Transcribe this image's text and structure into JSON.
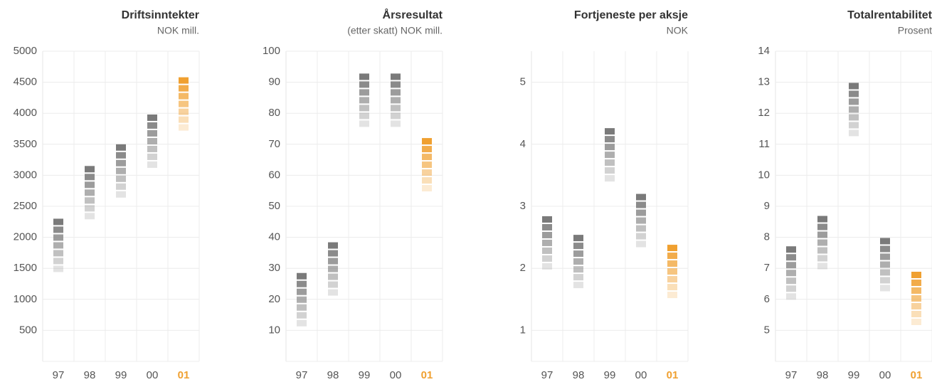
{
  "chart_data": [
    {
      "type": "bar",
      "title": "Driftsinntekter",
      "subtitle": "NOK mill.",
      "categories": [
        "97",
        "98",
        "99",
        "00",
        "01"
      ],
      "values": [
        2300,
        3150,
        3500,
        3980,
        4580
      ],
      "colors": [
        "#7a7a7a",
        "#7a7a7a",
        "#7a7a7a",
        "#7a7a7a",
        "#f0a030"
      ],
      "ylim": [
        0,
        5000
      ],
      "yticks": [
        500,
        1000,
        1500,
        2000,
        2500,
        3000,
        3500,
        4000,
        4500,
        5000
      ],
      "grid": true
    },
    {
      "type": "bar",
      "title": "Årsresultat",
      "subtitle": "(etter skatt) NOK mill.",
      "categories": [
        "97",
        "98",
        "99",
        "00",
        "01"
      ],
      "values": [
        28.5,
        38.4,
        92.8,
        92.8,
        72
      ],
      "colors": [
        "#7a7a7a",
        "#7a7a7a",
        "#7a7a7a",
        "#7a7a7a",
        "#f0a030"
      ],
      "ylim": [
        0,
        100
      ],
      "yticks": [
        10,
        20,
        30,
        40,
        50,
        60,
        70,
        80,
        90,
        100
      ],
      "grid": true
    },
    {
      "type": "bar",
      "title": "Fortjeneste per aksje",
      "subtitle": "NOK",
      "categories": [
        "97",
        "98",
        "99",
        "00",
        "01"
      ],
      "values": [
        2.84,
        2.54,
        4.26,
        3.2,
        2.38
      ],
      "colors": [
        "#7a7a7a",
        "#7a7a7a",
        "#7a7a7a",
        "#7a7a7a",
        "#f0a030"
      ],
      "ylim": [
        0.5,
        5.5
      ],
      "yticks": [
        1,
        2,
        3,
        4,
        5
      ],
      "grid": true
    },
    {
      "type": "bar",
      "title": "Totalrentabilitet",
      "subtitle": "Prosent",
      "categories": [
        "97",
        "98",
        "99",
        "00",
        "01"
      ],
      "values": [
        7.71,
        8.69,
        12.98,
        7.98,
        6.89
      ],
      "colors": [
        "#7a7a7a",
        "#7a7a7a",
        "#7a7a7a",
        "#7a7a7a",
        "#f0a030"
      ],
      "ylim": [
        4,
        14
      ],
      "yticks": [
        5,
        6,
        7,
        8,
        9,
        10,
        11,
        12,
        13,
        14
      ],
      "grid": true
    }
  ]
}
